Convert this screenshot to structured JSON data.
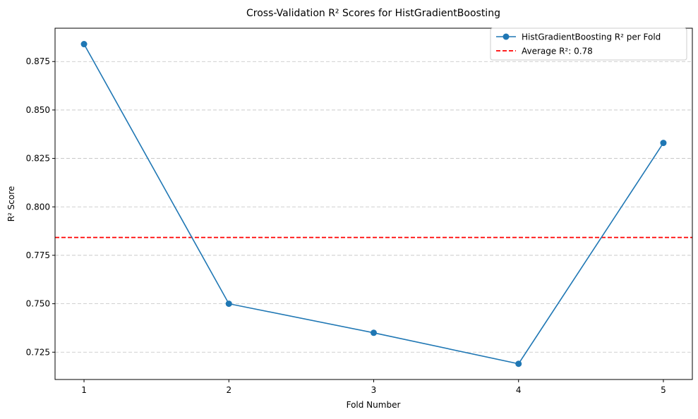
{
  "chart_data": {
    "type": "line",
    "title": "Cross-Validation R² Scores for HistGradientBoosting",
    "xlabel": "Fold Number",
    "ylabel": "R² Score",
    "x": [
      1,
      2,
      3,
      4,
      5
    ],
    "xlim": [
      0.8,
      5.2
    ],
    "ylim": [
      0.7109,
      0.8922
    ],
    "xticks": [
      1,
      2,
      3,
      4,
      5
    ],
    "xtick_labels": [
      "1",
      "2",
      "3",
      "4",
      "5"
    ],
    "yticks": [
      0.725,
      0.75,
      0.775,
      0.8,
      0.825,
      0.85,
      0.875
    ],
    "ytick_labels": [
      "0.725",
      "0.750",
      "0.775",
      "0.800",
      "0.825",
      "0.850",
      "0.875"
    ],
    "grid": "y-axis dashed",
    "legend_position": "top-right",
    "series": [
      {
        "name": "HistGradientBoosting R² per Fold",
        "values": [
          0.884,
          0.75,
          0.735,
          0.719,
          0.833
        ],
        "color": "#1f77b4",
        "marker": "circle"
      }
    ],
    "reference_lines": [
      {
        "label": "Average R²: 0.78",
        "y": 0.7842,
        "color": "#ff0000",
        "style": "dashed"
      }
    ]
  }
}
